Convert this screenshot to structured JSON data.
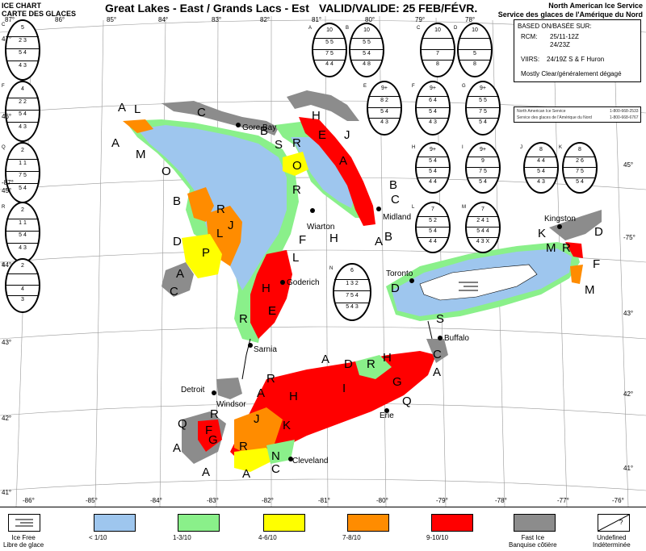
{
  "header": {
    "left_line1": "ICE CHART",
    "left_line2": "CARTE DES GLACES",
    "title": "Great Lakes - East / Grands Lacs - Est",
    "valid": "VALID/VALIDE: 25 FEB/FÉVR.",
    "right_line1": "North American Ice Service",
    "right_line2": "Service des glaces de l'Amérique du Nord"
  },
  "info_box": {
    "based_on": "BASED ON/BASÉE SUR:",
    "rcm_label": "RCM:",
    "rcm_line1": "25/11-12Z",
    "rcm_line2": "24/23Z",
    "viirs_label": "VIIRS:",
    "viirs_value": "24/19Z  S & F Huron",
    "weather": "Mostly Clear/généralement dégagé"
  },
  "credits": {
    "line1": "North American Ice Service",
    "line1_phone": "1-800-668-2533",
    "line2": "Service des glaces de l'Amérique du Nord",
    "line2_phone": "1-800-668-6767"
  },
  "colors": {
    "water": "#ffffff",
    "ice_free": "#ffffff",
    "lt1": "#9ec6ee",
    "c13": "#8af08a",
    "c46": "#ffff00",
    "c78": "#ff8c00",
    "c910": "#ff0000",
    "fast": "#8c8c8c",
    "land": "#ffffff"
  },
  "eggs": [
    {
      "id": "C",
      "r1": "5",
      "r2": "2  3",
      "r3": "5  4",
      "r4": "4  3"
    },
    {
      "id": "F",
      "r1": "4",
      "r2": "2  2",
      "r3": "5  4",
      "r4": "4  3"
    },
    {
      "id": "Q",
      "r1": "2",
      "r2": "1  1",
      "r3": "7  5",
      "r4": "5  4"
    },
    {
      "id": "R",
      "r1": "2",
      "r2": "1  1",
      "r3": "5  4",
      "r4": "4  3"
    },
    {
      "id": "S",
      "r1": "2",
      "r2": "",
      "r3": "4",
      "r4": "3"
    },
    {
      "id": "A",
      "r1": "10",
      "r2": "5  5",
      "r3": "7  5",
      "r4": "4  4"
    },
    {
      "id": "B",
      "r1": "10",
      "r2": "5  5",
      "r3": "5  4",
      "r4": "4  8"
    },
    {
      "id": "C",
      "r1": "10",
      "r2": "",
      "r3": "7",
      "r4": "8"
    },
    {
      "id": "D",
      "r1": "10",
      "r2": "",
      "r3": "5",
      "r4": "8"
    },
    {
      "id": "E",
      "r1": "9+",
      "r2": "8  2",
      "r3": "5  4",
      "r4": "4  3"
    },
    {
      "id": "F",
      "r1": "9+",
      "r2": "6  4",
      "r3": "5  4",
      "r4": "4  3"
    },
    {
      "id": "G",
      "r1": "9+",
      "r2": "5  5",
      "r3": "7  5",
      "r4": "5  4"
    },
    {
      "id": "H",
      "r1": "9+",
      "r2": "5  4",
      "r3": "5  4",
      "r4": "4  4"
    },
    {
      "id": "I",
      "r1": "9+",
      "r2": "9",
      "r3": "7  5",
      "r4": "5  4"
    },
    {
      "id": "J",
      "r1": "8",
      "r2": "4  4",
      "r3": "5  4",
      "r4": "4  3"
    },
    {
      "id": "K",
      "r1": "8",
      "r2": "2  6",
      "r3": "7  5",
      "r4": "5  4"
    },
    {
      "id": "L",
      "r1": "7",
      "r2": "5  2",
      "r3": "5  4",
      "r4": "4  4"
    },
    {
      "id": "M",
      "r1": "7",
      "r2": "2  4  1",
      "r3": "5  4  4",
      "r4": "4  3  X"
    },
    {
      "id": "N",
      "r1": "6",
      "r2": "1  3  2",
      "r3": "7  5  4",
      "r4": "5  4  3"
    }
  ],
  "zone_labels": [
    "A",
    "L",
    "A",
    "M",
    "O",
    "C",
    "B",
    "S",
    "R",
    "O",
    "H",
    "E",
    "J",
    "A",
    "B",
    "C",
    "R",
    "H",
    "B",
    "B",
    "R",
    "L",
    "J",
    "D",
    "P",
    "A",
    "C",
    "F",
    "L",
    "H",
    "E",
    "R",
    "A",
    "K",
    "M",
    "R",
    "D",
    "F",
    "M",
    "D",
    "S",
    "A",
    "H",
    "R",
    "G",
    "D",
    "C",
    "A",
    "I",
    "H",
    "Q",
    "R",
    "A",
    "J",
    "K",
    "R",
    "Q",
    "F",
    "G",
    "A",
    "R",
    "A",
    "A",
    "C",
    "N",
    "E"
  ],
  "cities": {
    "gore_bay": "Gore Bay",
    "wiarton": "Wiarton",
    "midland": "Midland",
    "goderich": "Goderich",
    "sarnia": "Sarnia",
    "detroit": "Detroit",
    "windsor": "Windsor",
    "cleveland": "Cleveland",
    "erie": "Erie",
    "buffalo": "Buffalo",
    "toronto": "Toronto",
    "kingston": "Kingston"
  },
  "axis": {
    "bottom": [
      "-86°",
      "-85°",
      "-84°",
      "-83°",
      "-82°",
      "-81°",
      "-80°",
      "-79°",
      "-78°",
      "-77°",
      "-76°"
    ],
    "top": [
      "87°",
      "86°",
      "85°",
      "84°",
      "83°",
      "82°",
      "81°",
      "80°",
      "79°",
      "78°"
    ],
    "left": [
      "47°",
      "46°",
      "-87°",
      "45°",
      "44°",
      "43°",
      "42°",
      "41°"
    ],
    "right": [
      "45°",
      "-75°",
      "43°",
      "42°",
      "41°"
    ]
  },
  "legend": [
    {
      "label1": "Ice Free",
      "label2": "Libre de glace",
      "key": "ice_free"
    },
    {
      "label1": "< 1/10",
      "label2": "",
      "key": "lt1"
    },
    {
      "label1": "1-3/10",
      "label2": "",
      "key": "c13"
    },
    {
      "label1": "4-6/10",
      "label2": "",
      "key": "c46"
    },
    {
      "label1": "7-8/10",
      "label2": "",
      "key": "c78"
    },
    {
      "label1": "9-10/10",
      "label2": "",
      "key": "c910"
    },
    {
      "label1": "Fast Ice",
      "label2": "Banquise côtière",
      "key": "fast"
    },
    {
      "label1": "Undefined",
      "label2": "Indéterminée",
      "key": "undef"
    }
  ]
}
